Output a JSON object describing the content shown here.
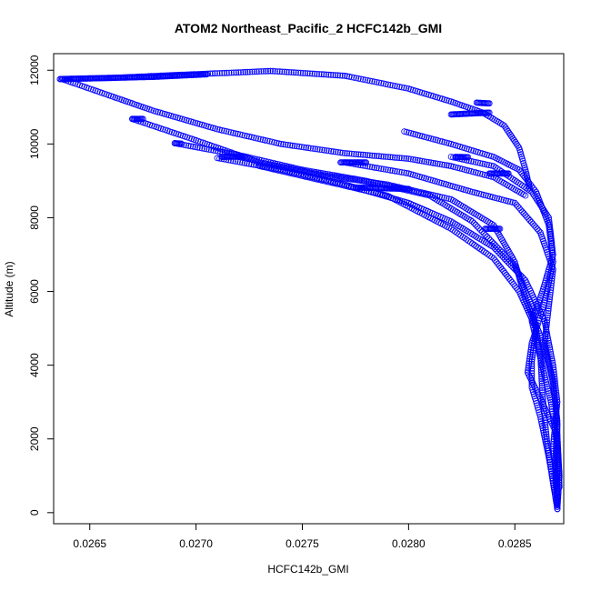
{
  "chart_data": {
    "type": "scatter",
    "title": "ATOM2 Northeast_Pacific_2 HCFC142b_GMI",
    "xlabel": "HCFC142b_GMI",
    "ylabel": "Altitude (m)",
    "xlim": [
      0.02633,
      0.02873
    ],
    "ylim": [
      -300,
      12450
    ],
    "x_ticks": [
      0.0265,
      0.027,
      0.0275,
      0.028,
      0.0285
    ],
    "x_tick_labels": [
      "0.0265",
      "0.0270",
      "0.0275",
      "0.0280",
      "0.0285"
    ],
    "y_ticks": [
      0,
      2000,
      4000,
      6000,
      8000,
      10000,
      12000
    ],
    "y_tick_labels": [
      "0",
      "2000",
      "4000",
      "6000",
      "8000",
      "10000",
      "12000"
    ],
    "grid": false,
    "legend": "none",
    "marker": "open-circle",
    "colors": {
      "points": "#0000ff",
      "axes": "#000000",
      "background": "#ffffff"
    },
    "series": [
      {
        "profiles": [
          [
            [
              0.02636,
              11760
            ],
            [
              0.0266,
              11790
            ],
            [
              0.0269,
              11870
            ],
            [
              0.0272,
              11940
            ],
            [
              0.02735,
              11980
            ]
          ],
          [
            [
              0.02735,
              11980
            ],
            [
              0.0277,
              11850
            ],
            [
              0.028,
              11500
            ],
            [
              0.0282,
              11150
            ],
            [
              0.02835,
              10850
            ],
            [
              0.02845,
              10500
            ],
            [
              0.02852,
              9900
            ],
            [
              0.02855,
              9300
            ],
            [
              0.02857,
              8800
            ]
          ],
          [
            [
              0.02638,
              11740
            ],
            [
              0.0266,
              11300
            ],
            [
              0.0268,
              10900
            ],
            [
              0.0271,
              10400
            ],
            [
              0.0274,
              10000
            ],
            [
              0.0277,
              9750
            ],
            [
              0.028,
              9600
            ],
            [
              0.0282,
              9400
            ],
            [
              0.0284,
              9100
            ],
            [
              0.02855,
              8600
            ]
          ],
          [
            [
              0.0267,
              10680
            ],
            [
              0.027,
              10100
            ],
            [
              0.0273,
              9500
            ],
            [
              0.0276,
              9150
            ],
            [
              0.0279,
              8900
            ],
            [
              0.0282,
              8500
            ],
            [
              0.0284,
              7800
            ],
            [
              0.0285,
              6800
            ],
            [
              0.02855,
              5800
            ],
            [
              0.02862,
              4800
            ],
            [
              0.02868,
              3600
            ],
            [
              0.0287,
              2400
            ],
            [
              0.02869,
              1200
            ],
            [
              0.0287,
              100
            ]
          ],
          [
            [
              0.0269,
              10020
            ],
            [
              0.0272,
              9700
            ],
            [
              0.0275,
              9300
            ],
            [
              0.0278,
              9000
            ],
            [
              0.0281,
              8600
            ],
            [
              0.0283,
              7900
            ],
            [
              0.0284,
              7300
            ],
            [
              0.0285,
              6700
            ],
            [
              0.02858,
              5600
            ],
            [
              0.02862,
              4300
            ],
            [
              0.02863,
              3200
            ],
            [
              0.02865,
              2000
            ],
            [
              0.02868,
              800
            ],
            [
              0.0287,
              100
            ]
          ],
          [
            [
              0.0271,
              9620
            ],
            [
              0.0274,
              9300
            ],
            [
              0.0277,
              8900
            ],
            [
              0.028,
              8400
            ],
            [
              0.0282,
              7900
            ],
            [
              0.0284,
              7200
            ],
            [
              0.02855,
              6300
            ],
            [
              0.02864,
              5200
            ],
            [
              0.02868,
              4000
            ],
            [
              0.0287,
              3000
            ],
            [
              0.02868,
              1800
            ],
            [
              0.0287,
              600
            ]
          ],
          [
            [
              0.0273,
              9400
            ],
            [
              0.0276,
              9000
            ],
            [
              0.0279,
              8600
            ],
            [
              0.0282,
              7700
            ],
            [
              0.0284,
              6900
            ],
            [
              0.02852,
              6000
            ],
            [
              0.0286,
              5000
            ],
            [
              0.02858,
              4100
            ],
            [
              0.02858,
              3400
            ],
            [
              0.02862,
              2600
            ],
            [
              0.02866,
              1500
            ],
            [
              0.02869,
              500
            ]
          ],
          [
            [
              0.0277,
              9500
            ],
            [
              0.028,
              9200
            ],
            [
              0.0283,
              8700
            ],
            [
              0.0285,
              8400
            ],
            [
              0.02862,
              7600
            ],
            [
              0.02868,
              6600
            ],
            [
              0.02866,
              5600
            ],
            [
              0.02864,
              4600
            ],
            [
              0.02868,
              3500
            ],
            [
              0.0287,
              2500
            ],
            [
              0.0287,
              1200
            ],
            [
              0.0287,
              200
            ]
          ],
          [
            [
              0.02798,
              10340
            ],
            [
              0.0282,
              10000
            ],
            [
              0.0284,
              9650
            ],
            [
              0.02852,
              9300
            ],
            [
              0.0286,
              8700
            ],
            [
              0.02866,
              7800
            ],
            [
              0.02868,
              6800
            ],
            [
              0.02864,
              5700
            ],
            [
              0.02858,
              4600
            ],
            [
              0.02856,
              3800
            ],
            [
              0.02862,
              3100
            ],
            [
              0.0287,
              2100
            ],
            [
              0.02871,
              1000
            ],
            [
              0.0287,
              100
            ]
          ],
          [
            [
              0.0282,
              9650
            ],
            [
              0.0284,
              9400
            ],
            [
              0.02858,
              8700
            ],
            [
              0.02866,
              8000
            ],
            [
              0.02868,
              7000
            ],
            [
              0.02863,
              6000
            ],
            [
              0.02858,
              5200
            ],
            [
              0.02862,
              4200
            ],
            [
              0.02867,
              3000
            ],
            [
              0.0287,
              1800
            ],
            [
              0.02871,
              700
            ]
          ]
        ],
        "clusters": [
          [
            0.02636,
            11760,
            0.0268,
            11820
          ],
          [
            0.0268,
            11820,
            0.02705,
            11890
          ],
          [
            0.0267,
            10680,
            0.02675,
            10680
          ],
          [
            0.0269,
            10020,
            0.02693,
            10010
          ],
          [
            0.02712,
            9650,
            0.02722,
            9660
          ],
          [
            0.02768,
            9500,
            0.0278,
            9500
          ],
          [
            0.02775,
            8820,
            0.028,
            8780
          ],
          [
            0.0282,
            10800,
            0.02838,
            10850
          ],
          [
            0.02832,
            11120,
            0.02838,
            11100
          ],
          [
            0.02822,
            9650,
            0.02828,
            9640
          ],
          [
            0.02838,
            9200,
            0.02847,
            9200
          ],
          [
            0.02836,
            7700,
            0.02843,
            7700
          ]
        ]
      }
    ]
  }
}
